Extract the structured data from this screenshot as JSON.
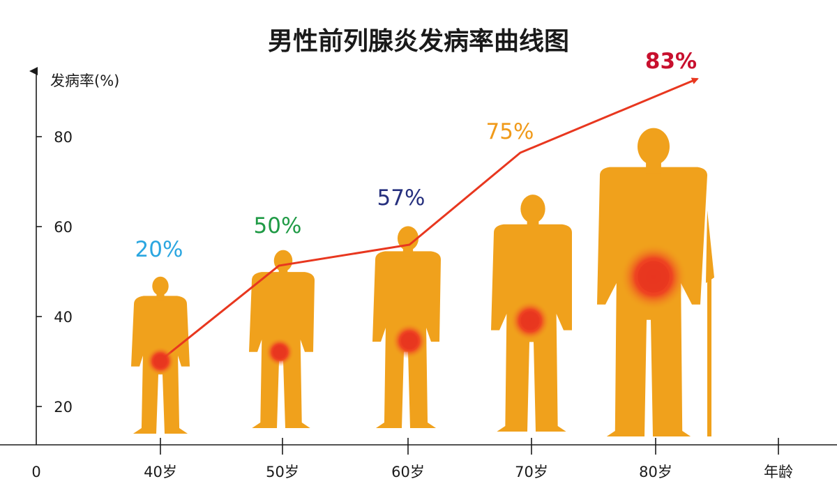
{
  "chart_data": {
    "type": "line",
    "title": "男性前列腺炎发病率曲线图",
    "ylabel": "发病率(%)",
    "xlabel": "年龄",
    "y_ticks": [
      "0",
      "20",
      "40",
      "60",
      "80"
    ],
    "categories": [
      "40岁",
      "50岁",
      "60岁",
      "70岁",
      "80岁"
    ],
    "values": [
      20,
      50,
      57,
      75,
      83
    ],
    "value_labels": [
      "20%",
      "50%",
      "57%",
      "75%",
      "83%"
    ],
    "label_colors": [
      "#2aa6e0",
      "#1f9a45",
      "#26307e",
      "#f09a1a",
      "#c8102e"
    ],
    "line_color": "#e8371f",
    "figure_color": "#f0a11c",
    "hotspot_color": "#e8371f",
    "grid": false
  }
}
